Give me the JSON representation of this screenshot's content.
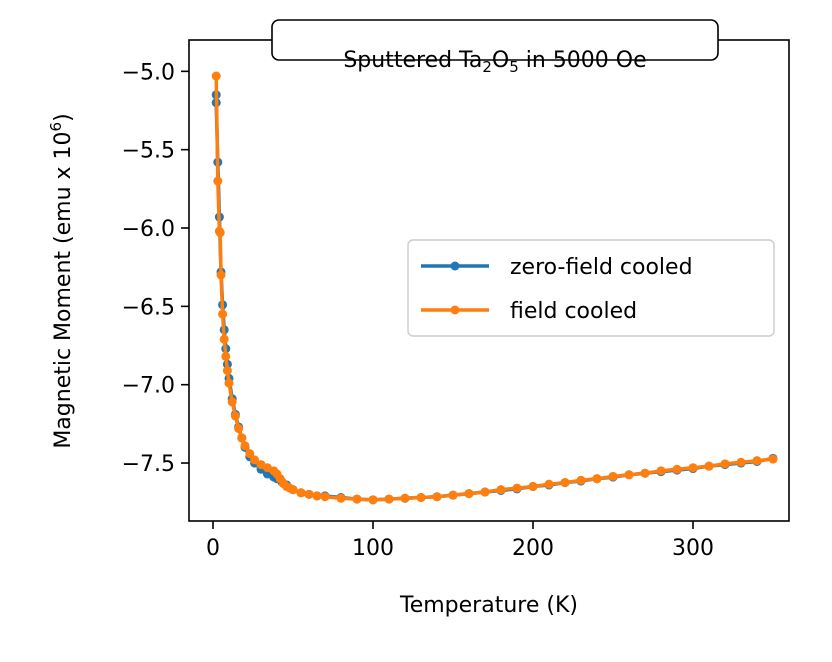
{
  "chart_data": {
    "type": "line",
    "title_parts": [
      {
        "text": "Sputtered Ta",
        "sub": false
      },
      {
        "text": "2",
        "sub": true
      },
      {
        "text": "O",
        "sub": false
      },
      {
        "text": "5",
        "sub": true
      },
      {
        "text": " in 5000 Oe",
        "sub": false
      }
    ],
    "xlabel": "Temperature (K)",
    "ylabel_parts": [
      {
        "text": "Magnetic Moment (emu x 10",
        "sup": false
      },
      {
        "text": "6",
        "sup": true
      },
      {
        "text": ")",
        "sup": false
      }
    ],
    "xlim": [
      -15,
      360
    ],
    "ylim": [
      -7.87,
      -4.8
    ],
    "xticks": [
      0,
      100,
      200,
      300
    ],
    "xtick_labels": [
      "0",
      "100",
      "200",
      "300"
    ],
    "yticks": [
      -5.0,
      -5.5,
      -6.0,
      -6.5,
      -7.0,
      -7.5
    ],
    "ytick_labels": [
      "−5.0",
      "−5.5",
      "−6.0",
      "−6.5",
      "−7.0",
      "−7.5"
    ],
    "legend_position": "center-right",
    "series": [
      {
        "name": "zero-field cooled",
        "color": "#1f77b4",
        "x": [
          2,
          2,
          3,
          4,
          5,
          6,
          7,
          8,
          9,
          10,
          12,
          14,
          16,
          18,
          20,
          23,
          26,
          30,
          34,
          38,
          40,
          43,
          46,
          50,
          55,
          60,
          65,
          70,
          80,
          90,
          100,
          110,
          120,
          130,
          140,
          150,
          160,
          170,
          180,
          190,
          200,
          210,
          220,
          230,
          240,
          250,
          260,
          270,
          280,
          290,
          300,
          310,
          320,
          330,
          340,
          350
        ],
        "y": [
          -5.15,
          -5.2,
          -5.58,
          -5.93,
          -6.28,
          -6.49,
          -6.65,
          -6.77,
          -6.87,
          -6.96,
          -7.09,
          -7.19,
          -7.27,
          -7.34,
          -7.4,
          -7.46,
          -7.5,
          -7.54,
          -7.57,
          -7.59,
          -7.6,
          -7.62,
          -7.64,
          -7.67,
          -7.69,
          -7.7,
          -7.71,
          -7.71,
          -7.72,
          -7.73,
          -7.735,
          -7.73,
          -7.725,
          -7.72,
          -7.715,
          -7.705,
          -7.695,
          -7.685,
          -7.675,
          -7.665,
          -7.65,
          -7.64,
          -7.625,
          -7.615,
          -7.6,
          -7.59,
          -7.575,
          -7.565,
          -7.555,
          -7.545,
          -7.535,
          -7.52,
          -7.51,
          -7.5,
          -7.49,
          -7.47
        ]
      },
      {
        "name": "field cooled",
        "color": "#ff7f0e",
        "x": [
          2,
          3,
          4,
          4.5,
          5,
          6,
          7,
          8,
          9,
          10,
          12,
          14,
          16,
          18,
          20,
          23,
          26,
          30,
          34,
          38,
          40,
          42,
          44,
          46,
          48,
          50,
          55,
          60,
          65,
          70,
          80,
          90,
          100,
          110,
          120,
          130,
          140,
          150,
          160,
          170,
          180,
          190,
          200,
          210,
          220,
          230,
          240,
          250,
          260,
          270,
          280,
          290,
          300,
          310,
          320,
          330,
          340,
          350
        ],
        "y": [
          -5.03,
          -5.7,
          -6.02,
          -6.03,
          -6.3,
          -6.55,
          -6.71,
          -6.82,
          -6.91,
          -6.99,
          -7.11,
          -7.2,
          -7.28,
          -7.34,
          -7.39,
          -7.44,
          -7.48,
          -7.51,
          -7.53,
          -7.55,
          -7.57,
          -7.6,
          -7.63,
          -7.65,
          -7.66,
          -7.67,
          -7.69,
          -7.7,
          -7.71,
          -7.715,
          -7.725,
          -7.73,
          -7.735,
          -7.73,
          -7.725,
          -7.72,
          -7.715,
          -7.705,
          -7.695,
          -7.685,
          -7.67,
          -7.66,
          -7.65,
          -7.635,
          -7.625,
          -7.61,
          -7.6,
          -7.585,
          -7.575,
          -7.565,
          -7.55,
          -7.54,
          -7.53,
          -7.52,
          -7.505,
          -7.495,
          -7.485,
          -7.475
        ]
      }
    ]
  }
}
